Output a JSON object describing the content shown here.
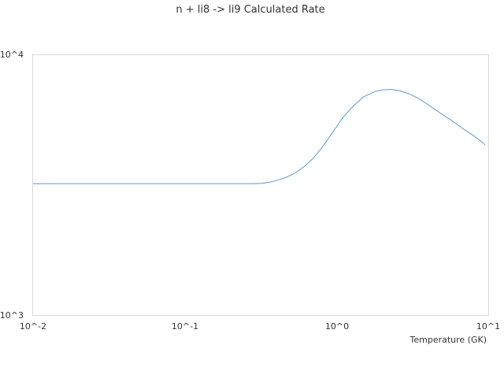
{
  "chart_data": {
    "type": "line",
    "title": "n + li8 -> li9 Calculated Rate",
    "xlabel": "Temperature (GK)",
    "ylabel": "",
    "xscale": "log",
    "yscale": "log",
    "xlim": [
      0.01,
      10
    ],
    "ylim": [
      1000,
      10000
    ],
    "x_tick_labels": [
      "10^-2",
      "10^-1",
      "10^0",
      "10^1"
    ],
    "y_tick_labels": [
      "10^3",
      "10^4"
    ],
    "grid": false,
    "line_color": "#5b9bd5",
    "series": [
      {
        "x": [
          0.01,
          0.02,
          0.05,
          0.1,
          0.2,
          0.25,
          0.28,
          0.32,
          0.36,
          0.4,
          0.45,
          0.5,
          0.55,
          0.62,
          0.7,
          0.8,
          0.9,
          1.0,
          1.1,
          1.3,
          1.5,
          1.8,
          2.0,
          2.3,
          2.6,
          3.0,
          3.5,
          4.0,
          5.0,
          6.0,
          7.0,
          8.0,
          9.0,
          9.5
        ],
        "y": [
          3200,
          3200,
          3200,
          3200,
          3200,
          3200,
          3200,
          3210,
          3240,
          3290,
          3360,
          3450,
          3560,
          3750,
          4000,
          4400,
          4850,
          5300,
          5750,
          6400,
          6900,
          7250,
          7350,
          7380,
          7300,
          7100,
          6800,
          6450,
          5900,
          5500,
          5150,
          4900,
          4650,
          4520
        ]
      }
    ]
  }
}
